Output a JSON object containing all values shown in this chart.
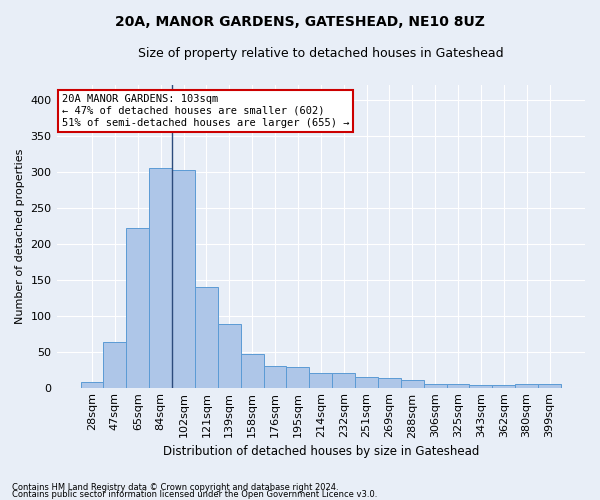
{
  "title": "20A, MANOR GARDENS, GATESHEAD, NE10 8UZ",
  "subtitle": "Size of property relative to detached houses in Gateshead",
  "xlabel": "Distribution of detached houses by size in Gateshead",
  "ylabel": "Number of detached properties",
  "categories": [
    "28sqm",
    "47sqm",
    "65sqm",
    "84sqm",
    "102sqm",
    "121sqm",
    "139sqm",
    "158sqm",
    "176sqm",
    "195sqm",
    "214sqm",
    "232sqm",
    "251sqm",
    "269sqm",
    "288sqm",
    "306sqm",
    "325sqm",
    "343sqm",
    "362sqm",
    "380sqm",
    "399sqm"
  ],
  "values": [
    8,
    63,
    222,
    305,
    302,
    140,
    89,
    46,
    30,
    28,
    20,
    20,
    15,
    13,
    11,
    5,
    5,
    3,
    3,
    5,
    5
  ],
  "bar_color": "#aec6e8",
  "bar_edge_color": "#5b9bd5",
  "vline_color": "#2c4b7c",
  "annotation_text": "20A MANOR GARDENS: 103sqm\n← 47% of detached houses are smaller (602)\n51% of semi-detached houses are larger (655) →",
  "annotation_box_color": "#ffffff",
  "annotation_box_edge": "#cc0000",
  "ylim": [
    0,
    420
  ],
  "background_color": "#e8eef7",
  "grid_color": "#ffffff",
  "footer1": "Contains HM Land Registry data © Crown copyright and database right 2024.",
  "footer2": "Contains public sector information licensed under the Open Government Licence v3.0."
}
